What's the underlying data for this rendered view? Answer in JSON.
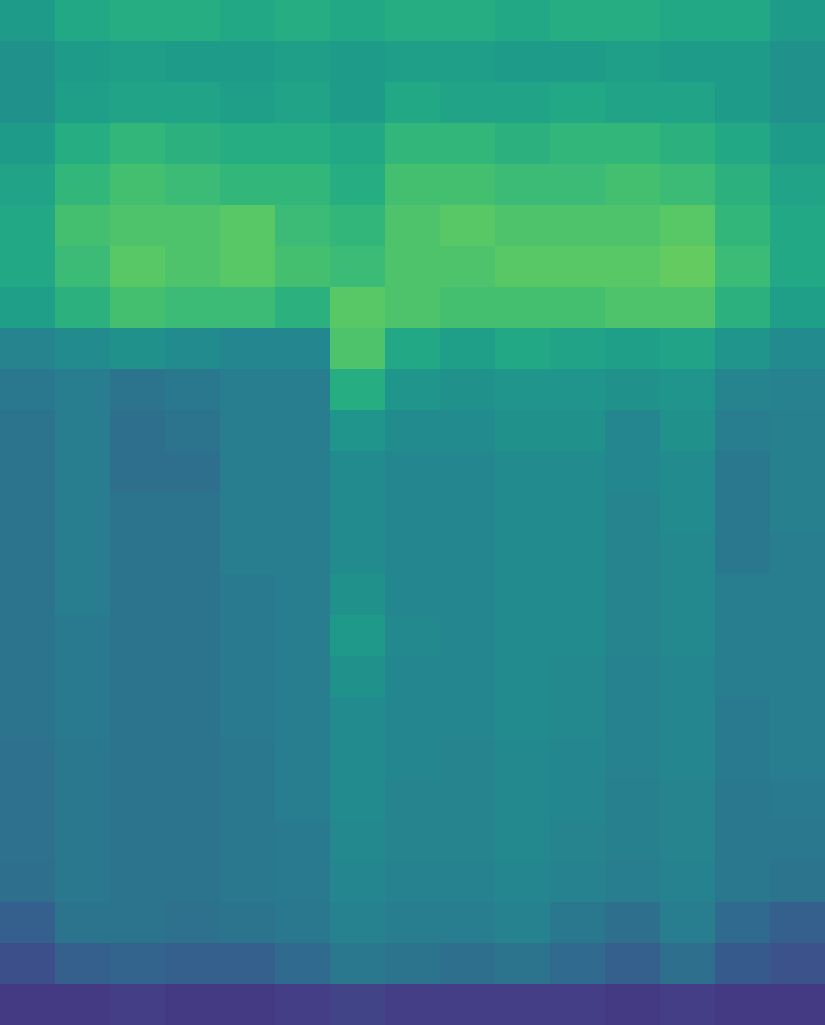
{
  "chart_data": {
    "type": "heatmap",
    "tick_labels": false,
    "color": "viridis",
    "zlim": [
      0,
      1
    ],
    "cells": [
      [
        0.55,
        0.6,
        0.62,
        0.62,
        0.6,
        0.62,
        0.6,
        0.62,
        0.62,
        0.6,
        0.62,
        0.62,
        0.6,
        0.6,
        0.55
      ],
      [
        0.5,
        0.55,
        0.56,
        0.55,
        0.55,
        0.56,
        0.55,
        0.56,
        0.56,
        0.55,
        0.55,
        0.56,
        0.55,
        0.55,
        0.5
      ],
      [
        0.5,
        0.56,
        0.58,
        0.58,
        0.56,
        0.58,
        0.55,
        0.6,
        0.58,
        0.58,
        0.6,
        0.58,
        0.58,
        0.55,
        0.5
      ],
      [
        0.55,
        0.62,
        0.66,
        0.64,
        0.62,
        0.62,
        0.6,
        0.66,
        0.66,
        0.64,
        0.66,
        0.66,
        0.64,
        0.6,
        0.55
      ],
      [
        0.58,
        0.66,
        0.7,
        0.68,
        0.66,
        0.66,
        0.62,
        0.7,
        0.7,
        0.68,
        0.68,
        0.7,
        0.68,
        0.64,
        0.58
      ],
      [
        0.6,
        0.7,
        0.72,
        0.72,
        0.74,
        0.68,
        0.66,
        0.72,
        0.74,
        0.72,
        0.72,
        0.72,
        0.74,
        0.66,
        0.6
      ],
      [
        0.6,
        0.68,
        0.74,
        0.72,
        0.74,
        0.7,
        0.68,
        0.72,
        0.72,
        0.74,
        0.74,
        0.74,
        0.76,
        0.68,
        0.6
      ],
      [
        0.56,
        0.64,
        0.7,
        0.68,
        0.68,
        0.64,
        0.74,
        0.72,
        0.7,
        0.7,
        0.7,
        0.72,
        0.72,
        0.64,
        0.56
      ],
      [
        0.45,
        0.48,
        0.5,
        0.48,
        0.46,
        0.46,
        0.72,
        0.6,
        0.56,
        0.6,
        0.58,
        0.56,
        0.58,
        0.52,
        0.48
      ],
      [
        0.4,
        0.42,
        0.38,
        0.4,
        0.42,
        0.42,
        0.62,
        0.52,
        0.5,
        0.52,
        0.52,
        0.5,
        0.52,
        0.45,
        0.44
      ],
      [
        0.38,
        0.42,
        0.36,
        0.38,
        0.42,
        0.42,
        0.52,
        0.48,
        0.48,
        0.5,
        0.5,
        0.46,
        0.5,
        0.42,
        0.43
      ],
      [
        0.38,
        0.42,
        0.36,
        0.36,
        0.42,
        0.42,
        0.48,
        0.46,
        0.46,
        0.48,
        0.48,
        0.46,
        0.48,
        0.4,
        0.43
      ],
      [
        0.38,
        0.42,
        0.38,
        0.38,
        0.42,
        0.42,
        0.48,
        0.46,
        0.46,
        0.48,
        0.48,
        0.45,
        0.48,
        0.4,
        0.43
      ],
      [
        0.38,
        0.42,
        0.38,
        0.38,
        0.42,
        0.42,
        0.48,
        0.46,
        0.46,
        0.48,
        0.48,
        0.45,
        0.47,
        0.4,
        0.42
      ],
      [
        0.38,
        0.42,
        0.38,
        0.38,
        0.41,
        0.42,
        0.5,
        0.46,
        0.46,
        0.48,
        0.48,
        0.45,
        0.47,
        0.42,
        0.42
      ],
      [
        0.38,
        0.41,
        0.38,
        0.38,
        0.41,
        0.42,
        0.54,
        0.47,
        0.46,
        0.48,
        0.48,
        0.45,
        0.47,
        0.42,
        0.42
      ],
      [
        0.38,
        0.41,
        0.38,
        0.38,
        0.41,
        0.42,
        0.5,
        0.46,
        0.46,
        0.48,
        0.47,
        0.44,
        0.46,
        0.42,
        0.42
      ],
      [
        0.38,
        0.41,
        0.38,
        0.38,
        0.41,
        0.42,
        0.48,
        0.46,
        0.46,
        0.48,
        0.47,
        0.44,
        0.46,
        0.41,
        0.42
      ],
      [
        0.37,
        0.4,
        0.38,
        0.38,
        0.4,
        0.42,
        0.48,
        0.46,
        0.45,
        0.47,
        0.46,
        0.44,
        0.46,
        0.41,
        0.42
      ],
      [
        0.37,
        0.4,
        0.38,
        0.38,
        0.4,
        0.42,
        0.48,
        0.45,
        0.45,
        0.47,
        0.46,
        0.43,
        0.45,
        0.4,
        0.41
      ],
      [
        0.37,
        0.4,
        0.38,
        0.38,
        0.4,
        0.41,
        0.47,
        0.45,
        0.45,
        0.47,
        0.45,
        0.43,
        0.45,
        0.4,
        0.4
      ],
      [
        0.36,
        0.4,
        0.38,
        0.38,
        0.4,
        0.41,
        0.46,
        0.44,
        0.44,
        0.46,
        0.44,
        0.42,
        0.44,
        0.4,
        0.38
      ],
      [
        0.3,
        0.38,
        0.38,
        0.37,
        0.38,
        0.4,
        0.44,
        0.42,
        0.42,
        0.44,
        0.4,
        0.36,
        0.42,
        0.34,
        0.3
      ],
      [
        0.24,
        0.3,
        0.32,
        0.3,
        0.3,
        0.34,
        0.4,
        0.38,
        0.36,
        0.38,
        0.34,
        0.3,
        0.36,
        0.28,
        0.25
      ],
      [
        0.17,
        0.17,
        0.18,
        0.17,
        0.17,
        0.18,
        0.2,
        0.18,
        0.18,
        0.18,
        0.18,
        0.17,
        0.18,
        0.17,
        0.17
      ]
    ]
  }
}
